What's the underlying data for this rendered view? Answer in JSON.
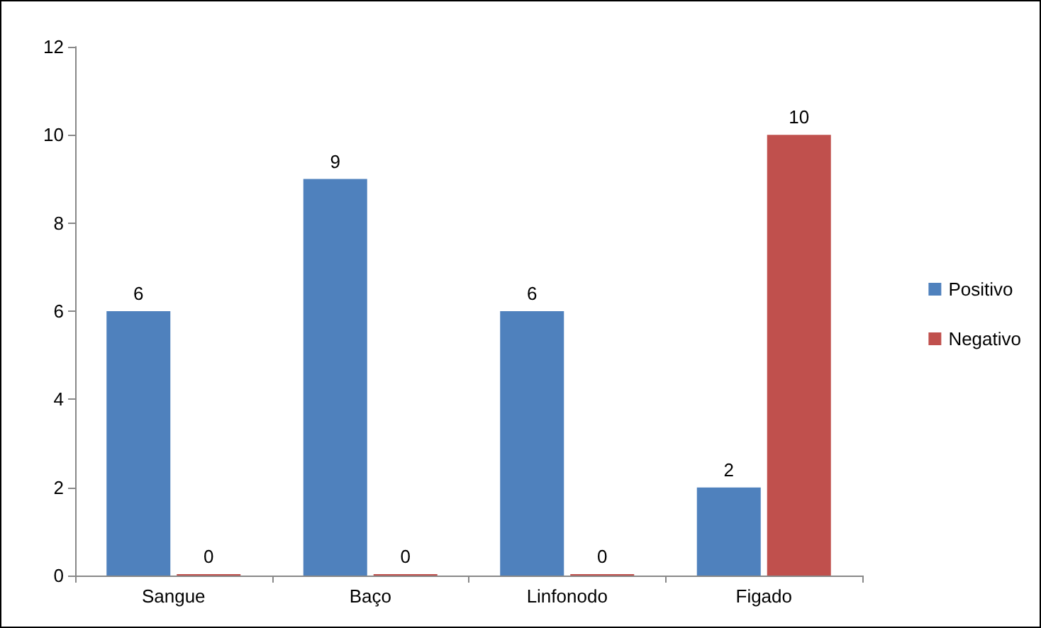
{
  "chart_data": {
    "type": "bar",
    "categories": [
      "Sangue",
      "Baço",
      "Linfonodo",
      "Figado"
    ],
    "series": [
      {
        "name": "Positivo",
        "color": "#4f81bd",
        "values": [
          6,
          9,
          6,
          2
        ]
      },
      {
        "name": "Negativo",
        "color": "#c0504d",
        "values": [
          0,
          0,
          0,
          10
        ]
      }
    ],
    "ylim": [
      0,
      12
    ],
    "yticks": [
      0,
      2,
      4,
      6,
      8,
      10,
      12
    ],
    "grid": false,
    "legend": "right",
    "data_labels": true
  }
}
